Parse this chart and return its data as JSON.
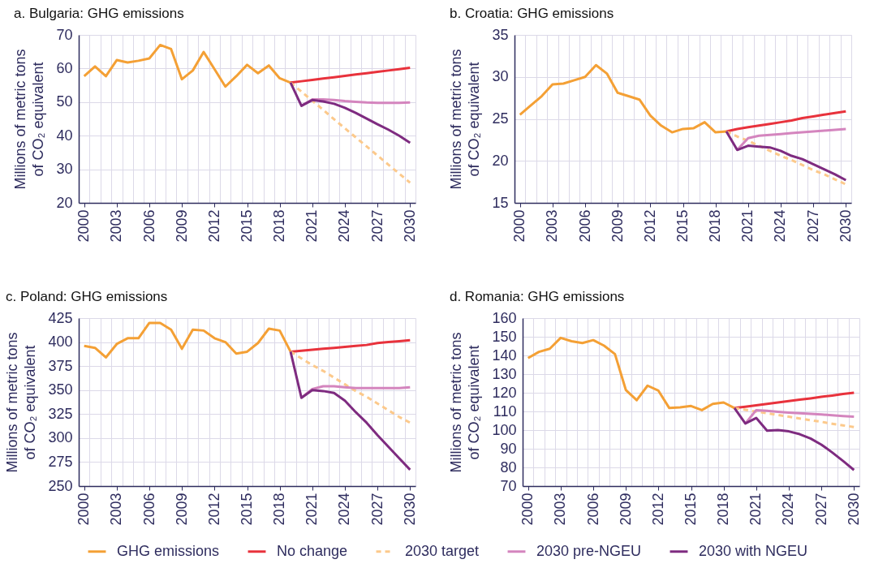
{
  "chart_data": [
    {
      "type": "line",
      "title": "a. Bulgaria: GHG emissions",
      "ylabel": "Millions of metric tons\nof CO₂ equivalent",
      "x": [
        2000,
        2001,
        2002,
        2003,
        2004,
        2005,
        2006,
        2007,
        2008,
        2009,
        2010,
        2011,
        2012,
        2013,
        2014,
        2015,
        2016,
        2017,
        2018,
        2019,
        2020,
        2021,
        2022,
        2023,
        2024,
        2025,
        2026,
        2027,
        2028,
        2029,
        2030
      ],
      "xlim": [
        1999.5,
        2030.5
      ],
      "xticks": [
        2000,
        {
          "value": 2000.5,
          "label": null
        },
        {
          "value": 2001.5,
          "label": null
        },
        {
          "value": 2002.5,
          "label": null
        },
        2003,
        {
          "value": 2003.5,
          "label": null
        },
        {
          "value": 2004.5,
          "label": null
        },
        {
          "value": 2005.5,
          "label": null
        },
        2006,
        {
          "value": 2006.5,
          "label": null
        },
        {
          "value": 2007.5,
          "label": null
        },
        {
          "value": 2008.5,
          "label": null
        },
        2009,
        {
          "value": 2009.5,
          "label": null
        },
        {
          "value": 2010.5,
          "label": null
        },
        {
          "value": 2011.5,
          "label": null
        },
        2012,
        {
          "value": 2012.5,
          "label": null
        },
        {
          "value": 2013.5,
          "label": null
        },
        {
          "value": 2014.5,
          "label": null
        },
        2015,
        {
          "value": 2015.5,
          "label": null
        },
        {
          "value": 2016.5,
          "label": null
        },
        {
          "value": 2017.5,
          "label": null
        },
        2018,
        {
          "value": 2018.5,
          "label": null
        },
        {
          "value": 2019.5,
          "label": null
        },
        {
          "value": 2020.5,
          "label": null
        },
        2021,
        {
          "value": 2021.5,
          "label": null
        },
        {
          "value": 2022.5,
          "label": null
        },
        {
          "value": 2023.5,
          "label": null
        },
        2024,
        {
          "value": 2024.5,
          "label": null
        },
        {
          "value": 2025.5,
          "label": null
        },
        {
          "value": 2026.5,
          "label": null
        },
        2027,
        {
          "value": 2027.5,
          "label": null
        },
        {
          "value": 2028.5,
          "label": null
        },
        {
          "value": 2029.5,
          "label": null
        },
        2030,
        {
          "value": 2030.5,
          "label": null
        }
      ],
      "ylim": [
        20,
        70
      ],
      "yticks": [
        20,
        30,
        40,
        50,
        60,
        70
      ],
      "grid": true,
      "legend": "bottom",
      "line_style": "solid",
      "series": [
        {
          "name": "GHG emissions",
          "color": "#f4a035",
          "values": [
            57.7,
            60.6,
            57.7,
            62.5,
            61.8,
            62.3,
            63.0,
            67.0,
            65.8,
            56.8,
            59.4,
            64.9,
            59.8,
            54.6,
            57.7,
            61.1,
            58.6,
            60.9,
            57.1,
            55.8,
            null,
            null,
            null,
            null,
            null,
            null,
            null,
            null,
            null,
            null,
            null
          ]
        },
        {
          "name": "No change",
          "color": "#e8323c",
          "values": [
            null,
            null,
            null,
            null,
            null,
            null,
            null,
            null,
            null,
            null,
            null,
            null,
            null,
            null,
            null,
            null,
            null,
            null,
            null,
            55.8,
            56.2,
            56.6,
            57.0,
            57.4,
            57.8,
            58.2,
            58.6,
            59.0,
            59.4,
            59.8,
            60.2
          ]
        },
        {
          "name": "2030 target",
          "color": "#fcc98b",
          "line_style": "dashed",
          "values": [
            null,
            null,
            null,
            null,
            null,
            null,
            null,
            null,
            null,
            null,
            null,
            null,
            null,
            null,
            null,
            null,
            null,
            null,
            null,
            55.8,
            53.1,
            50.4,
            47.7,
            44.9,
            42.2,
            39.5,
            36.8,
            34.1,
            31.4,
            28.7,
            26.0
          ]
        },
        {
          "name": "2030 pre-NGEU",
          "color": "#d485be",
          "values": [
            null,
            null,
            null,
            null,
            null,
            null,
            null,
            null,
            null,
            null,
            null,
            null,
            null,
            null,
            null,
            null,
            null,
            null,
            null,
            null,
            48.9,
            50.8,
            50.8,
            50.6,
            50.3,
            50.1,
            49.9,
            49.8,
            49.8,
            49.8,
            49.9
          ]
        },
        {
          "name": "2030 with NGEU",
          "color": "#7e2b80",
          "values": [
            null,
            null,
            null,
            null,
            null,
            null,
            null,
            null,
            null,
            null,
            null,
            null,
            null,
            null,
            null,
            null,
            null,
            null,
            null,
            55.8,
            48.9,
            50.6,
            50.2,
            49.5,
            48.3,
            46.8,
            45.1,
            43.4,
            41.8,
            40.0,
            37.9
          ]
        }
      ]
    },
    {
      "type": "line",
      "title": "b. Croatia: GHG emissions",
      "ylabel": "Millions of metric tons\nof CO₂ equivalent",
      "x": [
        2000,
        2001,
        2002,
        2003,
        2004,
        2005,
        2006,
        2007,
        2008,
        2009,
        2010,
        2011,
        2012,
        2013,
        2014,
        2015,
        2016,
        2017,
        2018,
        2019,
        2020,
        2021,
        2022,
        2023,
        2024,
        2025,
        2026,
        2027,
        2028,
        2029,
        2030
      ],
      "xlim": [
        1999.5,
        2030.5
      ],
      "xticks": [
        2000,
        {
          "value": 2000.5,
          "label": null
        },
        {
          "value": 2001.5,
          "label": null
        },
        {
          "value": 2002.5,
          "label": null
        },
        2003,
        {
          "value": 2003.5,
          "label": null
        },
        {
          "value": 2004.5,
          "label": null
        },
        {
          "value": 2005.5,
          "label": null
        },
        2006,
        {
          "value": 2006.5,
          "label": null
        },
        {
          "value": 2007.5,
          "label": null
        },
        {
          "value": 2008.5,
          "label": null
        },
        2009,
        {
          "value": 2009.5,
          "label": null
        },
        {
          "value": 2010.5,
          "label": null
        },
        {
          "value": 2011.5,
          "label": null
        },
        2012,
        {
          "value": 2012.5,
          "label": null
        },
        {
          "value": 2013.5,
          "label": null
        },
        {
          "value": 2014.5,
          "label": null
        },
        2015,
        {
          "value": 2015.5,
          "label": null
        },
        {
          "value": 2016.5,
          "label": null
        },
        {
          "value": 2017.5,
          "label": null
        },
        2018,
        {
          "value": 2018.5,
          "label": null
        },
        {
          "value": 2019.5,
          "label": null
        },
        {
          "value": 2020.5,
          "label": null
        },
        2021,
        {
          "value": 2021.5,
          "label": null
        },
        {
          "value": 2022.5,
          "label": null
        },
        {
          "value": 2023.5,
          "label": null
        },
        2024,
        {
          "value": 2024.5,
          "label": null
        },
        {
          "value": 2025.5,
          "label": null
        },
        {
          "value": 2026.5,
          "label": null
        },
        2027,
        {
          "value": 2027.5,
          "label": null
        },
        {
          "value": 2028.5,
          "label": null
        },
        {
          "value": 2029.5,
          "label": null
        },
        2030,
        {
          "value": 2030.5,
          "label": null
        }
      ],
      "ylim": [
        15,
        35
      ],
      "yticks": [
        15,
        20,
        25,
        30,
        35
      ],
      "grid": true,
      "legend": "bottom",
      "line_style": "solid",
      "series": [
        {
          "name": "GHG emissions",
          "color": "#f4a035",
          "values": [
            25.5,
            26.6,
            27.7,
            29.1,
            29.2,
            29.6,
            30.0,
            31.4,
            30.4,
            28.1,
            27.7,
            27.3,
            25.4,
            24.2,
            23.4,
            23.8,
            23.9,
            24.6,
            23.4,
            23.5,
            null,
            null,
            null,
            null,
            null,
            null,
            null,
            null,
            null,
            null,
            null
          ]
        },
        {
          "name": "No change",
          "color": "#e8323c",
          "values": [
            null,
            null,
            null,
            null,
            null,
            null,
            null,
            null,
            null,
            null,
            null,
            null,
            null,
            null,
            null,
            null,
            null,
            null,
            null,
            23.5,
            23.8,
            24.0,
            24.2,
            24.4,
            24.6,
            24.8,
            25.1,
            25.3,
            25.5,
            25.7,
            25.9
          ]
        },
        {
          "name": "2030 target",
          "color": "#fcc98b",
          "line_style": "dashed",
          "values": [
            null,
            null,
            null,
            null,
            null,
            null,
            null,
            null,
            null,
            null,
            null,
            null,
            null,
            null,
            null,
            null,
            null,
            null,
            null,
            23.5,
            22.9,
            22.4,
            21.8,
            21.2,
            20.6,
            20.1,
            19.5,
            18.9,
            18.4,
            17.8,
            17.2
          ]
        },
        {
          "name": "2030 pre-NGEU",
          "color": "#d485be",
          "values": [
            null,
            null,
            null,
            null,
            null,
            null,
            null,
            null,
            null,
            null,
            null,
            null,
            null,
            null,
            null,
            null,
            null,
            null,
            null,
            null,
            21.3,
            22.7,
            23.0,
            23.1,
            23.2,
            23.3,
            23.4,
            23.5,
            23.6,
            23.7,
            23.8
          ]
        },
        {
          "name": "2030 with NGEU",
          "color": "#7e2b80",
          "values": [
            null,
            null,
            null,
            null,
            null,
            null,
            null,
            null,
            null,
            null,
            null,
            null,
            null,
            null,
            null,
            null,
            null,
            null,
            null,
            23.5,
            21.3,
            21.8,
            21.7,
            21.6,
            21.2,
            20.6,
            20.2,
            19.6,
            19.0,
            18.4,
            17.7
          ]
        }
      ]
    },
    {
      "type": "line",
      "title": "c. Poland: GHG emissions",
      "ylabel": "Millions of metric tons\nof CO₂ equivalent",
      "x": [
        2000,
        2001,
        2002,
        2003,
        2004,
        2005,
        2006,
        2007,
        2008,
        2009,
        2010,
        2011,
        2012,
        2013,
        2014,
        2015,
        2016,
        2017,
        2018,
        2019,
        2020,
        2021,
        2022,
        2023,
        2024,
        2025,
        2026,
        2027,
        2028,
        2029,
        2030
      ],
      "xlim": [
        1999.5,
        2030.5
      ],
      "xticks": [
        2000,
        {
          "value": 2000.5,
          "label": null
        },
        {
          "value": 2001.5,
          "label": null
        },
        {
          "value": 2002.5,
          "label": null
        },
        2003,
        {
          "value": 2003.5,
          "label": null
        },
        {
          "value": 2004.5,
          "label": null
        },
        {
          "value": 2005.5,
          "label": null
        },
        2006,
        {
          "value": 2006.5,
          "label": null
        },
        {
          "value": 2007.5,
          "label": null
        },
        {
          "value": 2008.5,
          "label": null
        },
        2009,
        {
          "value": 2009.5,
          "label": null
        },
        {
          "value": 2010.5,
          "label": null
        },
        {
          "value": 2011.5,
          "label": null
        },
        2012,
        {
          "value": 2012.5,
          "label": null
        },
        {
          "value": 2013.5,
          "label": null
        },
        {
          "value": 2014.5,
          "label": null
        },
        2015,
        {
          "value": 2015.5,
          "label": null
        },
        {
          "value": 2016.5,
          "label": null
        },
        {
          "value": 2017.5,
          "label": null
        },
        2018,
        {
          "value": 2018.5,
          "label": null
        },
        {
          "value": 2019.5,
          "label": null
        },
        {
          "value": 2020.5,
          "label": null
        },
        2021,
        {
          "value": 2021.5,
          "label": null
        },
        {
          "value": 2022.5,
          "label": null
        },
        {
          "value": 2023.5,
          "label": null
        },
        2024,
        {
          "value": 2024.5,
          "label": null
        },
        {
          "value": 2025.5,
          "label": null
        },
        {
          "value": 2026.5,
          "label": null
        },
        2027,
        {
          "value": 2027.5,
          "label": null
        },
        {
          "value": 2028.5,
          "label": null
        },
        {
          "value": 2029.5,
          "label": null
        },
        2030,
        {
          "value": 2030.5,
          "label": null
        }
      ],
      "ylim": [
        250,
        425
      ],
      "yticks": [
        250,
        275,
        300,
        325,
        350,
        375,
        400,
        425
      ],
      "grid": true,
      "legend": "bottom",
      "line_style": "solid",
      "series": [
        {
          "name": "GHG emissions",
          "color": "#f4a035",
          "values": [
            396,
            394,
            384,
            398,
            404,
            404,
            420,
            420,
            413,
            393,
            413,
            412,
            404,
            400,
            388,
            390,
            399,
            414,
            412,
            390,
            null,
            null,
            null,
            null,
            null,
            null,
            null,
            null,
            null,
            null,
            null
          ]
        },
        {
          "name": "No change",
          "color": "#e8323c",
          "values": [
            null,
            null,
            null,
            null,
            null,
            null,
            null,
            null,
            null,
            null,
            null,
            null,
            null,
            null,
            null,
            null,
            null,
            null,
            null,
            390,
            391,
            392,
            393,
            394,
            395,
            396,
            397,
            399,
            400,
            401,
            402
          ]
        },
        {
          "name": "2030 target",
          "color": "#fcc98b",
          "line_style": "dashed",
          "values": [
            null,
            null,
            null,
            null,
            null,
            null,
            null,
            null,
            null,
            null,
            null,
            null,
            null,
            null,
            null,
            null,
            null,
            null,
            null,
            390,
            383,
            376,
            370,
            363,
            356,
            349,
            343,
            336,
            329,
            322,
            316
          ]
        },
        {
          "name": "2030 pre-NGEU",
          "color": "#d485be",
          "values": [
            null,
            null,
            null,
            null,
            null,
            null,
            null,
            null,
            null,
            null,
            null,
            null,
            null,
            null,
            null,
            null,
            null,
            null,
            null,
            null,
            342,
            351,
            354,
            354,
            353,
            352,
            352,
            352,
            352,
            352,
            353
          ]
        },
        {
          "name": "2030 with NGEU",
          "color": "#7e2b80",
          "values": [
            null,
            null,
            null,
            null,
            null,
            null,
            null,
            null,
            null,
            null,
            null,
            null,
            null,
            null,
            null,
            null,
            null,
            null,
            null,
            390,
            342,
            350,
            349,
            347,
            339,
            327,
            316,
            303,
            291,
            279,
            267
          ]
        }
      ]
    },
    {
      "type": "line",
      "title": "d. Romania: GHG emissions",
      "ylabel": "Millions of metric tons\nof CO₂ equivalent",
      "x": [
        2000,
        2001,
        2002,
        2003,
        2004,
        2005,
        2006,
        2007,
        2008,
        2009,
        2010,
        2011,
        2012,
        2013,
        2014,
        2015,
        2016,
        2017,
        2018,
        2019,
        2020,
        2021,
        2022,
        2023,
        2024,
        2025,
        2026,
        2027,
        2028,
        2029,
        2030
      ],
      "xlim": [
        1999.5,
        2030.5
      ],
      "xticks": [
        2000,
        {
          "value": 2000.5,
          "label": null
        },
        {
          "value": 2001.5,
          "label": null
        },
        {
          "value": 2002.5,
          "label": null
        },
        2003,
        {
          "value": 2003.5,
          "label": null
        },
        {
          "value": 2004.5,
          "label": null
        },
        {
          "value": 2005.5,
          "label": null
        },
        2006,
        {
          "value": 2006.5,
          "label": null
        },
        {
          "value": 2007.5,
          "label": null
        },
        {
          "value": 2008.5,
          "label": null
        },
        2009,
        {
          "value": 2009.5,
          "label": null
        },
        {
          "value": 2010.5,
          "label": null
        },
        {
          "value": 2011.5,
          "label": null
        },
        2012,
        {
          "value": 2012.5,
          "label": null
        },
        {
          "value": 2013.5,
          "label": null
        },
        {
          "value": 2014.5,
          "label": null
        },
        2015,
        {
          "value": 2015.5,
          "label": null
        },
        {
          "value": 2016.5,
          "label": null
        },
        {
          "value": 2017.5,
          "label": null
        },
        2018,
        {
          "value": 2018.5,
          "label": null
        },
        {
          "value": 2019.5,
          "label": null
        },
        {
          "value": 2020.5,
          "label": null
        },
        2021,
        {
          "value": 2021.5,
          "label": null
        },
        {
          "value": 2022.5,
          "label": null
        },
        {
          "value": 2023.5,
          "label": null
        },
        2024,
        {
          "value": 2024.5,
          "label": null
        },
        {
          "value": 2025.5,
          "label": null
        },
        {
          "value": 2026.5,
          "label": null
        },
        2027,
        {
          "value": 2027.5,
          "label": null
        },
        {
          "value": 2028.5,
          "label": null
        },
        {
          "value": 2029.5,
          "label": null
        },
        2030,
        {
          "value": 2030.5,
          "label": null
        }
      ],
      "ylim": [
        70,
        160
      ],
      "yticks": [
        70,
        80,
        90,
        100,
        110,
        120,
        130,
        140,
        150,
        160
      ],
      "grid": true,
      "legend": "bottom",
      "line_style": "solid",
      "series": [
        {
          "name": "GHG emissions",
          "color": "#f4a035",
          "values": [
            138.6,
            141.9,
            143.6,
            149.4,
            147.6,
            146.6,
            148.2,
            145.2,
            140.7,
            121.5,
            116.0,
            123.8,
            121.1,
            111.8,
            112.2,
            112.9,
            110.7,
            114.0,
            114.8,
            111.8,
            null,
            null,
            null,
            null,
            null,
            null,
            null,
            null,
            null,
            null,
            null
          ]
        },
        {
          "name": "No change",
          "color": "#e8323c",
          "values": [
            null,
            null,
            null,
            null,
            null,
            null,
            null,
            null,
            null,
            null,
            null,
            null,
            null,
            null,
            null,
            null,
            null,
            null,
            null,
            111.8,
            112.5,
            113.3,
            114.0,
            114.8,
            115.5,
            116.3,
            117.0,
            117.8,
            118.5,
            119.3,
            120.0
          ]
        },
        {
          "name": "2030 target",
          "color": "#fcc98b",
          "line_style": "dashed",
          "values": [
            null,
            null,
            null,
            null,
            null,
            null,
            null,
            null,
            null,
            null,
            null,
            null,
            null,
            null,
            null,
            null,
            null,
            null,
            null,
            111.8,
            110.9,
            109.9,
            109.0,
            108.1,
            107.2,
            106.2,
            105.3,
            104.4,
            103.4,
            102.5,
            101.6
          ]
        },
        {
          "name": "2030 pre-NGEU",
          "color": "#d485be",
          "values": [
            null,
            null,
            null,
            null,
            null,
            null,
            null,
            null,
            null,
            null,
            null,
            null,
            null,
            null,
            null,
            null,
            null,
            null,
            null,
            null,
            103.5,
            110.7,
            110.3,
            109.8,
            109.4,
            109.0,
            108.7,
            108.4,
            107.9,
            107.5,
            107.2
          ]
        },
        {
          "name": "2030 with NGEU",
          "color": "#7e2b80",
          "values": [
            null,
            null,
            null,
            null,
            null,
            null,
            null,
            null,
            null,
            null,
            null,
            null,
            null,
            null,
            null,
            null,
            null,
            null,
            null,
            111.8,
            103.5,
            106.5,
            99.7,
            100.0,
            99.3,
            97.8,
            95.5,
            92.2,
            88.0,
            83.4,
            78.6
          ]
        }
      ]
    }
  ]
}
